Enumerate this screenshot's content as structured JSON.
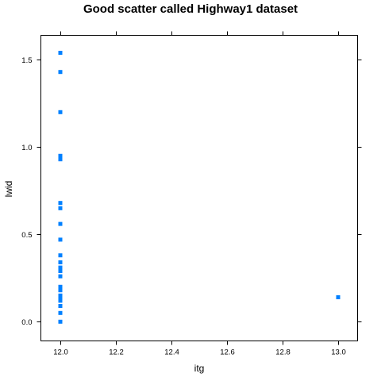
{
  "chart_data": {
    "type": "scatter",
    "title": "Good scatter called Highway1 dataset",
    "xlabel": "itg",
    "ylabel": "lwid",
    "xlim": [
      11.93,
      13.07
    ],
    "ylim": [
      -0.11,
      1.64
    ],
    "xticks": [
      "12.0",
      "12.2",
      "12.4",
      "12.6",
      "12.8",
      "13.0"
    ],
    "xtick_values": [
      12.0,
      12.2,
      12.4,
      12.6,
      12.8,
      13.0
    ],
    "yticks": [
      "0.0",
      "0.5",
      "1.0",
      "1.5"
    ],
    "ytick_values": [
      0.0,
      0.5,
      1.0,
      1.5
    ],
    "grid": false,
    "marker_color": "#0080ff",
    "points": [
      {
        "x": 12.0,
        "y": 1.54
      },
      {
        "x": 12.0,
        "y": 1.43
      },
      {
        "x": 12.0,
        "y": 1.2
      },
      {
        "x": 12.0,
        "y": 0.95
      },
      {
        "x": 12.0,
        "y": 0.93
      },
      {
        "x": 12.0,
        "y": 0.68
      },
      {
        "x": 12.0,
        "y": 0.65
      },
      {
        "x": 12.0,
        "y": 0.56
      },
      {
        "x": 12.0,
        "y": 0.47
      },
      {
        "x": 12.0,
        "y": 0.38
      },
      {
        "x": 12.0,
        "y": 0.34
      },
      {
        "x": 12.0,
        "y": 0.31
      },
      {
        "x": 12.0,
        "y": 0.29
      },
      {
        "x": 12.0,
        "y": 0.26
      },
      {
        "x": 12.0,
        "y": 0.2
      },
      {
        "x": 12.0,
        "y": 0.18
      },
      {
        "x": 12.0,
        "y": 0.15
      },
      {
        "x": 12.0,
        "y": 0.13
      },
      {
        "x": 12.0,
        "y": 0.12
      },
      {
        "x": 12.0,
        "y": 0.09
      },
      {
        "x": 12.0,
        "y": 0.05
      },
      {
        "x": 12.0,
        "y": 0.0
      },
      {
        "x": 13.0,
        "y": 0.14
      }
    ]
  }
}
